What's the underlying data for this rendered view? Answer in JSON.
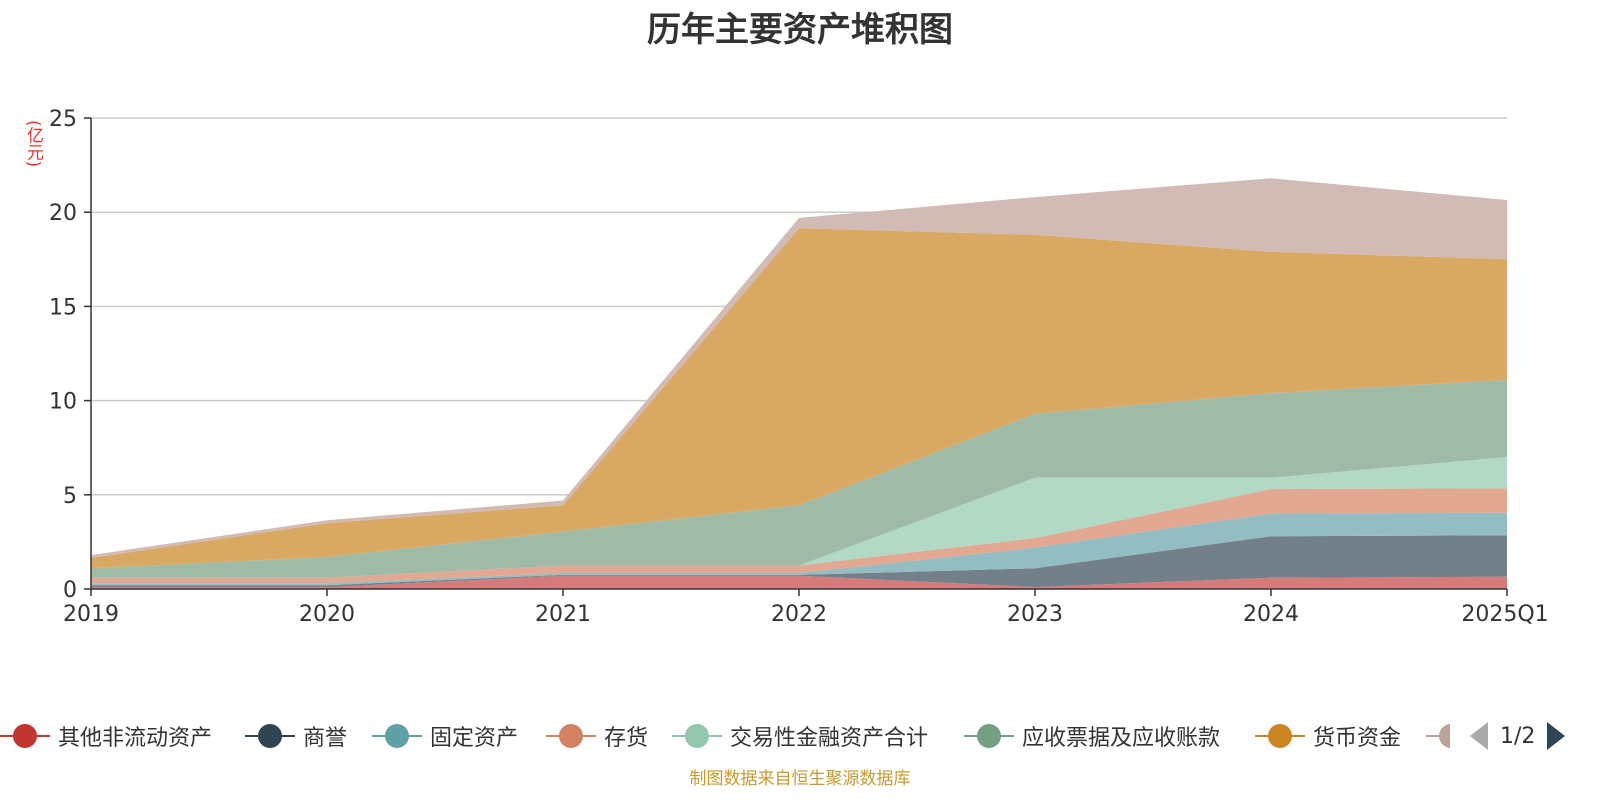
{
  "chart_data": {
    "type": "area",
    "stacked": true,
    "title": "历年主要资产堆积图",
    "unit_label": "(亿元)",
    "categories": [
      "2019",
      "2020",
      "2021",
      "2022",
      "2023",
      "2024",
      "2025Q1"
    ],
    "ylim": [
      0,
      25
    ],
    "yticks": [
      0,
      5,
      10,
      15,
      20,
      25
    ],
    "grid": true,
    "legend_position": "bottom",
    "legend_page": "1/2",
    "series": [
      {
        "name": "其他非流动资产",
        "color": "#c23531",
        "fill": "#d77a7a",
        "values": [
          0.1,
          0.1,
          0.7,
          0.7,
          0.1,
          0.6,
          0.65
        ]
      },
      {
        "name": "商誉",
        "color": "#2f4554",
        "fill": "#73808a",
        "values": [
          0.1,
          0.1,
          0.05,
          0.05,
          1.0,
          2.2,
          2.2
        ]
      },
      {
        "name": "固定资产",
        "color": "#61a0a8",
        "fill": "#93bdc2",
        "values": [
          0.1,
          0.1,
          0.1,
          0.1,
          1.1,
          1.2,
          1.2
        ]
      },
      {
        "name": "存货",
        "color": "#d48265",
        "fill": "#e2a892",
        "values": [
          0.3,
          0.3,
          0.4,
          0.4,
          0.5,
          1.3,
          1.3
        ]
      },
      {
        "name": "交易性金融资产合计",
        "color": "#91c7ae",
        "fill": "#b2d8c6",
        "values": [
          0.0,
          0.0,
          0.0,
          0.0,
          3.2,
          0.6,
          1.65
        ]
      },
      {
        "name": "应收票据及应收账款",
        "color": "#749f83",
        "fill": "#9fbba8",
        "values": [
          0.5,
          1.1,
          1.8,
          3.2,
          3.4,
          4.5,
          4.1
        ]
      },
      {
        "name": "货币资金",
        "color": "#ca8622",
        "fill": "#d9a862",
        "values": [
          0.55,
          1.8,
          1.4,
          14.7,
          9.5,
          7.5,
          6.4
        ]
      },
      {
        "name": "",
        "color": "#bda29a",
        "fill": "#d2bbb5",
        "values": [
          0.15,
          0.15,
          0.25,
          0.55,
          2.0,
          3.9,
          3.15
        ]
      }
    ]
  },
  "source_note": "制图数据来自恒生聚源数据库"
}
